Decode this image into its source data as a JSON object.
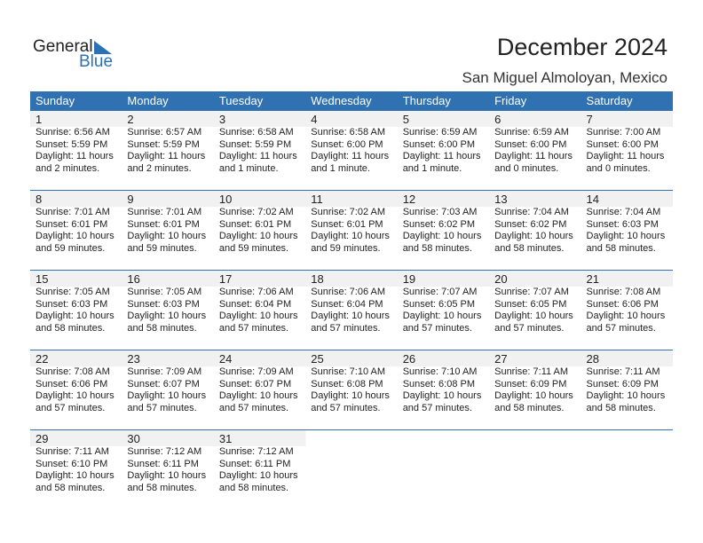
{
  "logo": {
    "general": "General",
    "blue": "Blue"
  },
  "title": "December 2024",
  "location": "San Miguel Almoloyan, Mexico",
  "colors": {
    "header": "#2f71b1",
    "logo_blue": "#2a72b5"
  },
  "weekdays": [
    "Sunday",
    "Monday",
    "Tuesday",
    "Wednesday",
    "Thursday",
    "Friday",
    "Saturday"
  ],
  "weeks": [
    [
      {
        "day": "1",
        "sunrise": "Sunrise: 6:56 AM",
        "sunset": "Sunset: 5:59 PM",
        "daylight": "Daylight: 11 hours",
        "daylight2": "and 2 minutes."
      },
      {
        "day": "2",
        "sunrise": "Sunrise: 6:57 AM",
        "sunset": "Sunset: 5:59 PM",
        "daylight": "Daylight: 11 hours",
        "daylight2": "and 2 minutes."
      },
      {
        "day": "3",
        "sunrise": "Sunrise: 6:58 AM",
        "sunset": "Sunset: 5:59 PM",
        "daylight": "Daylight: 11 hours",
        "daylight2": "and 1 minute."
      },
      {
        "day": "4",
        "sunrise": "Sunrise: 6:58 AM",
        "sunset": "Sunset: 6:00 PM",
        "daylight": "Daylight: 11 hours",
        "daylight2": "and 1 minute."
      },
      {
        "day": "5",
        "sunrise": "Sunrise: 6:59 AM",
        "sunset": "Sunset: 6:00 PM",
        "daylight": "Daylight: 11 hours",
        "daylight2": "and 1 minute."
      },
      {
        "day": "6",
        "sunrise": "Sunrise: 6:59 AM",
        "sunset": "Sunset: 6:00 PM",
        "daylight": "Daylight: 11 hours",
        "daylight2": "and 0 minutes."
      },
      {
        "day": "7",
        "sunrise": "Sunrise: 7:00 AM",
        "sunset": "Sunset: 6:00 PM",
        "daylight": "Daylight: 11 hours",
        "daylight2": "and 0 minutes."
      }
    ],
    [
      {
        "day": "8",
        "sunrise": "Sunrise: 7:01 AM",
        "sunset": "Sunset: 6:01 PM",
        "daylight": "Daylight: 10 hours",
        "daylight2": "and 59 minutes."
      },
      {
        "day": "9",
        "sunrise": "Sunrise: 7:01 AM",
        "sunset": "Sunset: 6:01 PM",
        "daylight": "Daylight: 10 hours",
        "daylight2": "and 59 minutes."
      },
      {
        "day": "10",
        "sunrise": "Sunrise: 7:02 AM",
        "sunset": "Sunset: 6:01 PM",
        "daylight": "Daylight: 10 hours",
        "daylight2": "and 59 minutes."
      },
      {
        "day": "11",
        "sunrise": "Sunrise: 7:02 AM",
        "sunset": "Sunset: 6:01 PM",
        "daylight": "Daylight: 10 hours",
        "daylight2": "and 59 minutes."
      },
      {
        "day": "12",
        "sunrise": "Sunrise: 7:03 AM",
        "sunset": "Sunset: 6:02 PM",
        "daylight": "Daylight: 10 hours",
        "daylight2": "and 58 minutes."
      },
      {
        "day": "13",
        "sunrise": "Sunrise: 7:04 AM",
        "sunset": "Sunset: 6:02 PM",
        "daylight": "Daylight: 10 hours",
        "daylight2": "and 58 minutes."
      },
      {
        "day": "14",
        "sunrise": "Sunrise: 7:04 AM",
        "sunset": "Sunset: 6:03 PM",
        "daylight": "Daylight: 10 hours",
        "daylight2": "and 58 minutes."
      }
    ],
    [
      {
        "day": "15",
        "sunrise": "Sunrise: 7:05 AM",
        "sunset": "Sunset: 6:03 PM",
        "daylight": "Daylight: 10 hours",
        "daylight2": "and 58 minutes."
      },
      {
        "day": "16",
        "sunrise": "Sunrise: 7:05 AM",
        "sunset": "Sunset: 6:03 PM",
        "daylight": "Daylight: 10 hours",
        "daylight2": "and 58 minutes."
      },
      {
        "day": "17",
        "sunrise": "Sunrise: 7:06 AM",
        "sunset": "Sunset: 6:04 PM",
        "daylight": "Daylight: 10 hours",
        "daylight2": "and 57 minutes."
      },
      {
        "day": "18",
        "sunrise": "Sunrise: 7:06 AM",
        "sunset": "Sunset: 6:04 PM",
        "daylight": "Daylight: 10 hours",
        "daylight2": "and 57 minutes."
      },
      {
        "day": "19",
        "sunrise": "Sunrise: 7:07 AM",
        "sunset": "Sunset: 6:05 PM",
        "daylight": "Daylight: 10 hours",
        "daylight2": "and 57 minutes."
      },
      {
        "day": "20",
        "sunrise": "Sunrise: 7:07 AM",
        "sunset": "Sunset: 6:05 PM",
        "daylight": "Daylight: 10 hours",
        "daylight2": "and 57 minutes."
      },
      {
        "day": "21",
        "sunrise": "Sunrise: 7:08 AM",
        "sunset": "Sunset: 6:06 PM",
        "daylight": "Daylight: 10 hours",
        "daylight2": "and 57 minutes."
      }
    ],
    [
      {
        "day": "22",
        "sunrise": "Sunrise: 7:08 AM",
        "sunset": "Sunset: 6:06 PM",
        "daylight": "Daylight: 10 hours",
        "daylight2": "and 57 minutes."
      },
      {
        "day": "23",
        "sunrise": "Sunrise: 7:09 AM",
        "sunset": "Sunset: 6:07 PM",
        "daylight": "Daylight: 10 hours",
        "daylight2": "and 57 minutes."
      },
      {
        "day": "24",
        "sunrise": "Sunrise: 7:09 AM",
        "sunset": "Sunset: 6:07 PM",
        "daylight": "Daylight: 10 hours",
        "daylight2": "and 57 minutes."
      },
      {
        "day": "25",
        "sunrise": "Sunrise: 7:10 AM",
        "sunset": "Sunset: 6:08 PM",
        "daylight": "Daylight: 10 hours",
        "daylight2": "and 57 minutes."
      },
      {
        "day": "26",
        "sunrise": "Sunrise: 7:10 AM",
        "sunset": "Sunset: 6:08 PM",
        "daylight": "Daylight: 10 hours",
        "daylight2": "and 57 minutes."
      },
      {
        "day": "27",
        "sunrise": "Sunrise: 7:11 AM",
        "sunset": "Sunset: 6:09 PM",
        "daylight": "Daylight: 10 hours",
        "daylight2": "and 58 minutes."
      },
      {
        "day": "28",
        "sunrise": "Sunrise: 7:11 AM",
        "sunset": "Sunset: 6:09 PM",
        "daylight": "Daylight: 10 hours",
        "daylight2": "and 58 minutes."
      }
    ],
    [
      {
        "day": "29",
        "sunrise": "Sunrise: 7:11 AM",
        "sunset": "Sunset: 6:10 PM",
        "daylight": "Daylight: 10 hours",
        "daylight2": "and 58 minutes."
      },
      {
        "day": "30",
        "sunrise": "Sunrise: 7:12 AM",
        "sunset": "Sunset: 6:11 PM",
        "daylight": "Daylight: 10 hours",
        "daylight2": "and 58 minutes."
      },
      {
        "day": "31",
        "sunrise": "Sunrise: 7:12 AM",
        "sunset": "Sunset: 6:11 PM",
        "daylight": "Daylight: 10 hours",
        "daylight2": "and 58 minutes."
      }
    ]
  ]
}
